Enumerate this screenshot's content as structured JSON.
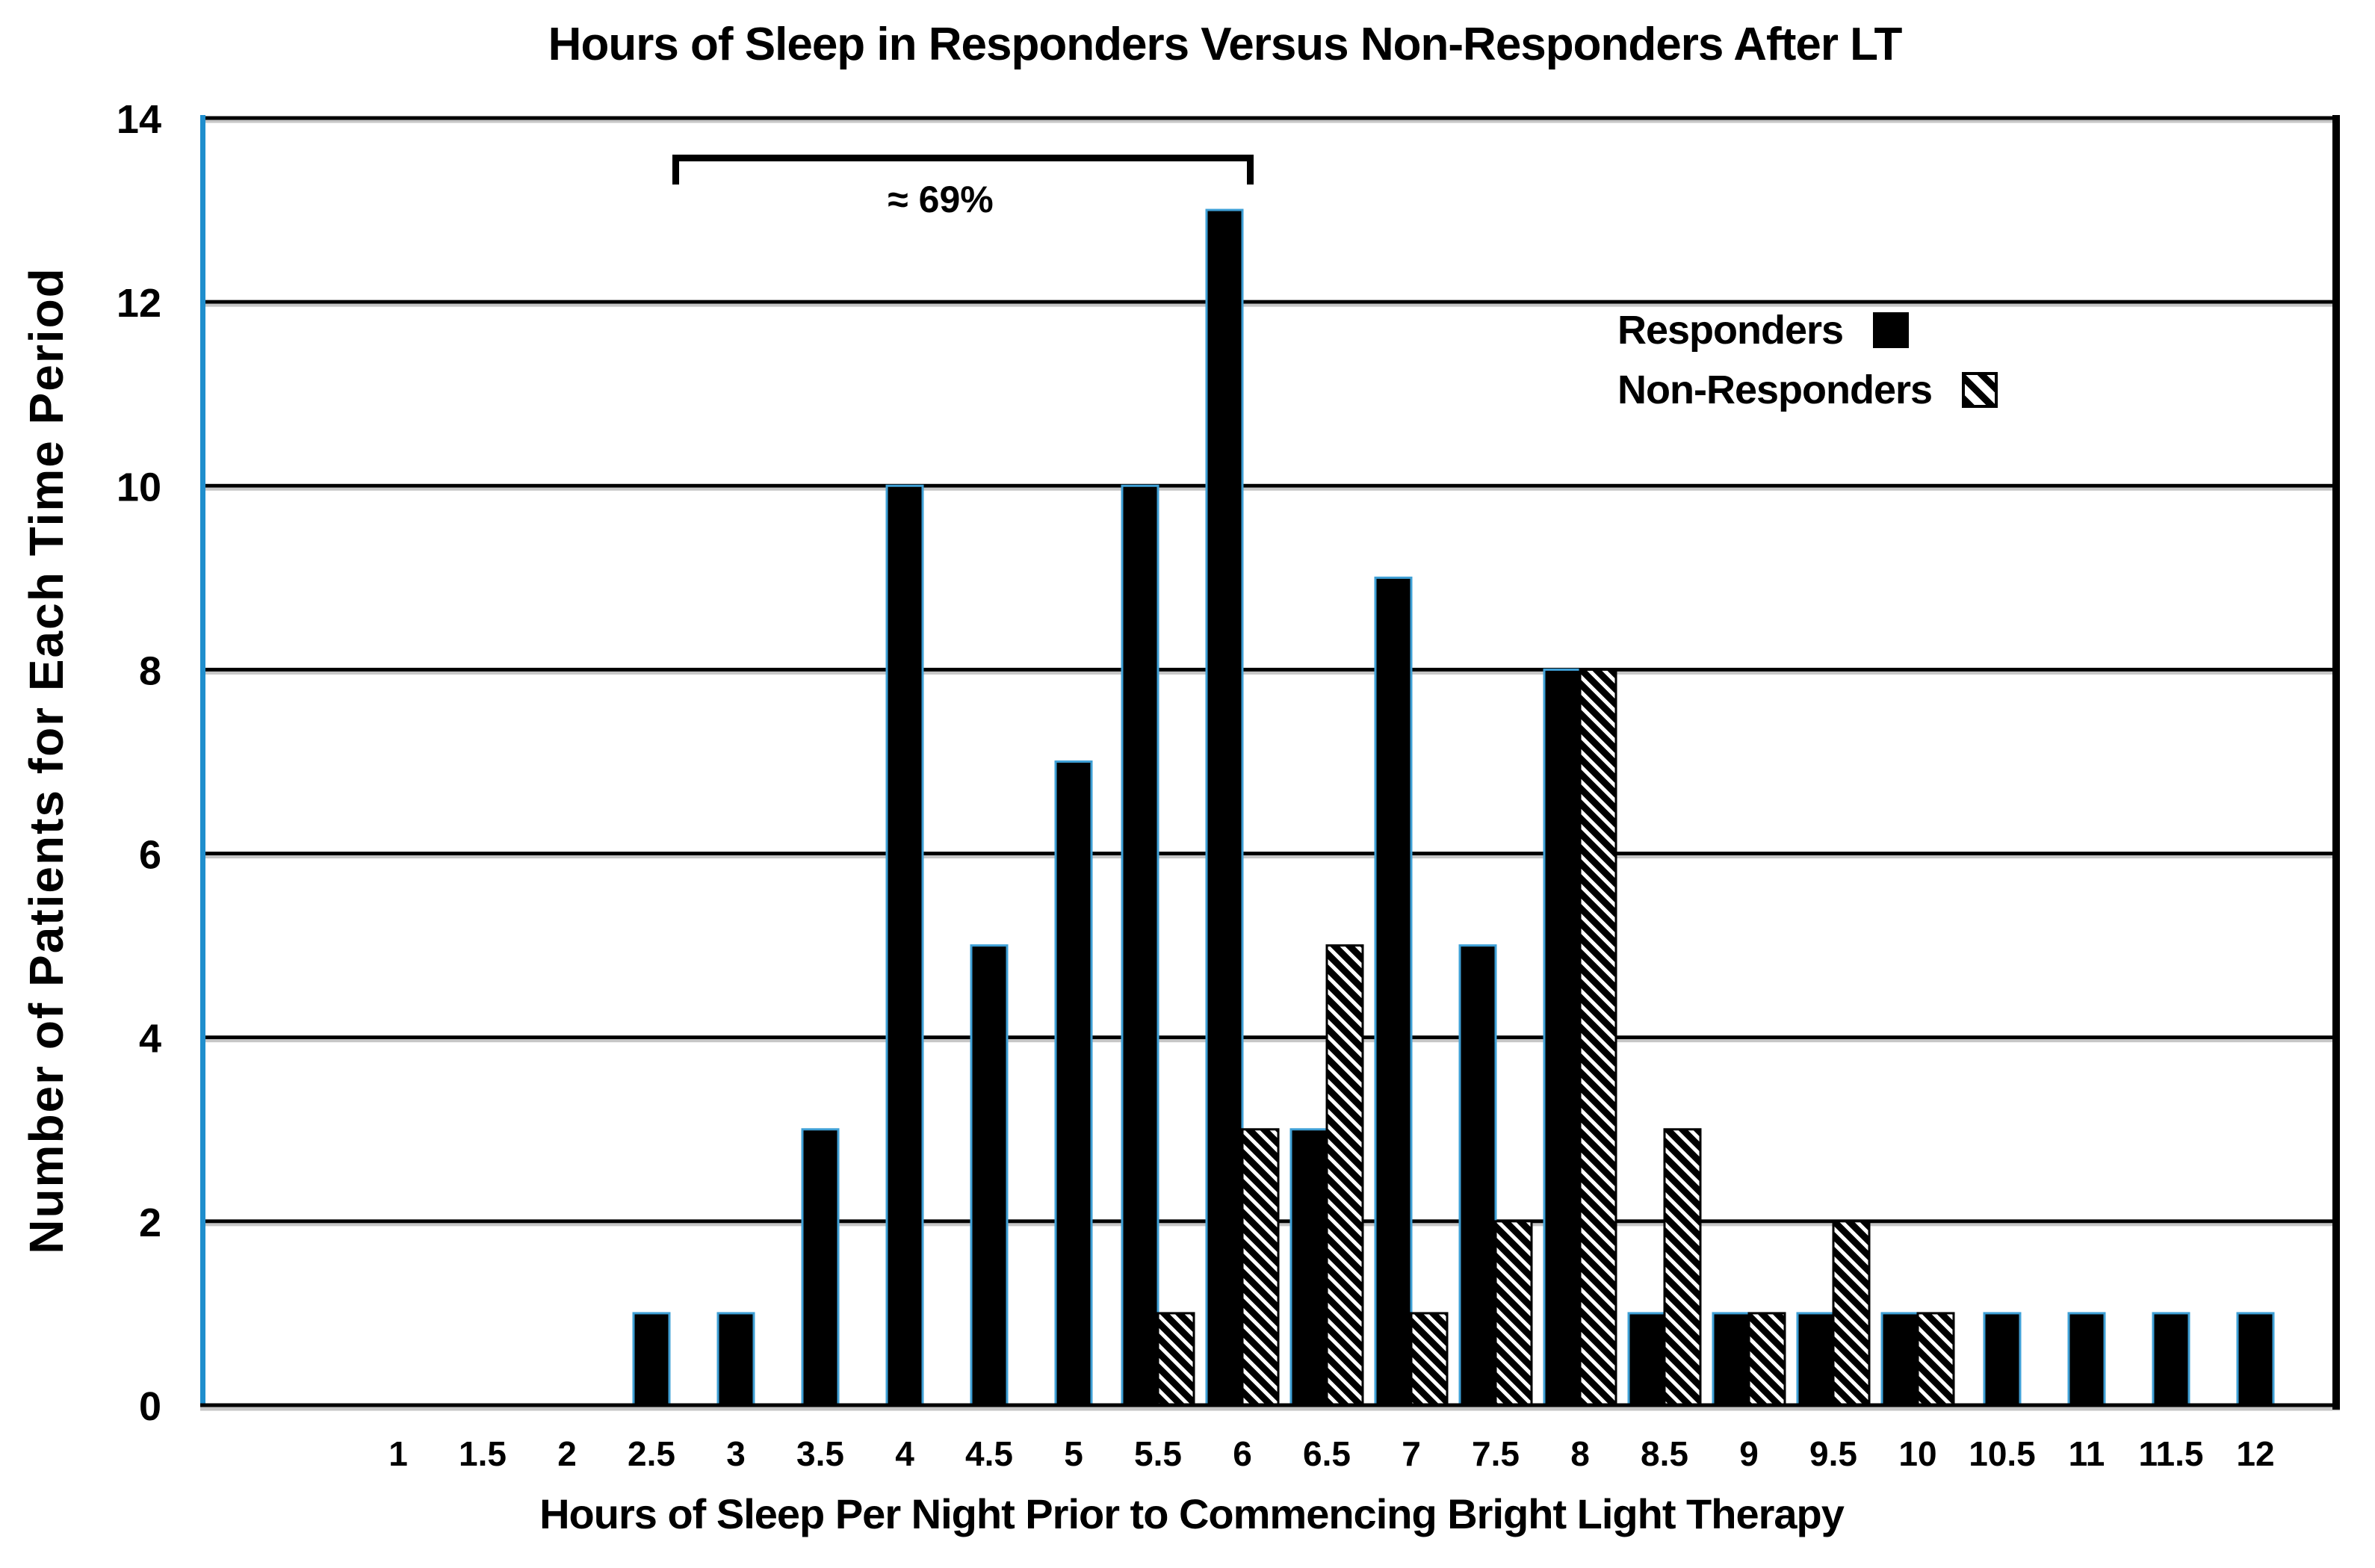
{
  "page": {
    "background": "#ffffff"
  },
  "chart_data": {
    "type": "bar",
    "title": "Hours of Sleep in Responders Versus Non-Responders After LT",
    "xlabel": "Hours of Sleep Per Night Prior to Commencing Bright Light Therapy",
    "ylabel": "Number of Patients for Each Time Period",
    "categories": [
      "1",
      "1.5",
      "2",
      "2.5",
      "3",
      "3.5",
      "4",
      "4.5",
      "5",
      "5.5",
      "6",
      "6.5",
      "7",
      "7.5",
      "8",
      "8.5",
      "9",
      "9.5",
      "10",
      "10.5",
      "11",
      "11.5",
      "12"
    ],
    "series": [
      {
        "name": "Responders",
        "swatch": "solid-black",
        "values": [
          0,
          0,
          0,
          1,
          1,
          3,
          10,
          5,
          7,
          10,
          13,
          3,
          9,
          5,
          8,
          1,
          1,
          1,
          1,
          1,
          1,
          1,
          1
        ]
      },
      {
        "name": "Non-Responders",
        "swatch": "diagonal-hatch",
        "values": [
          0,
          0,
          0,
          0,
          0,
          0,
          0,
          0,
          0,
          1,
          3,
          5,
          1,
          2,
          8,
          3,
          1,
          2,
          1,
          0,
          0,
          0,
          0
        ]
      }
    ],
    "ylim": [
      0,
      14
    ],
    "ytick_step": 2,
    "grid": "horizontal",
    "legend_position": "top-right",
    "annotation": {
      "text": "≈ 69%",
      "spans_from_category": "2.5",
      "spans_to_category": "6"
    },
    "colors": {
      "bar_fill": "#000000",
      "bar_outline": "#3fa0d6",
      "axis_line": "#1f8ecd",
      "hatch_stroke": "#000000",
      "gridline": "#000000",
      "gridline_shadow": "#c6c6c6",
      "plot_border": "#000000",
      "background": "#ffffff",
      "text": "#000000"
    }
  }
}
